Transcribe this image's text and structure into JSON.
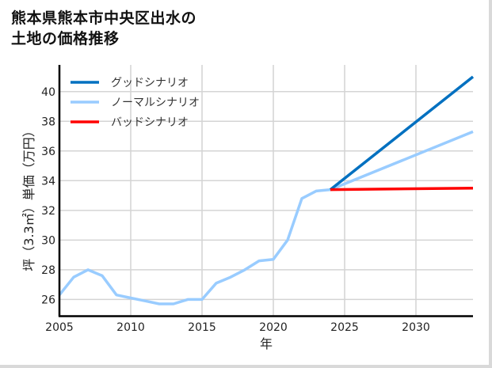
{
  "title": {
    "line1": "熊本県熊本市中央区出水の",
    "line2": "土地の価格推移"
  },
  "chart_data": {
    "type": "line",
    "title": "熊本県熊本市中央区出水の土地の価格推移",
    "xlabel": "年",
    "ylabel": "坪（3.3㎡）単価（万円）",
    "xlim": [
      2005,
      2034
    ],
    "ylim": [
      24.9,
      41.8
    ],
    "xticks": [
      2005,
      2010,
      2015,
      2020,
      2025,
      2030
    ],
    "yticks": [
      26,
      28,
      30,
      32,
      34,
      36,
      38,
      40
    ],
    "grid": true,
    "legend_position": "upper left",
    "series": [
      {
        "name": "グッドシナリオ",
        "color": "#0070c0",
        "x": [
          2024,
          2034
        ],
        "values": [
          33.4,
          41.0
        ]
      },
      {
        "name": "ノーマルシナリオ",
        "color": "#99ccff",
        "x": [
          2005,
          2006,
          2007,
          2008,
          2009,
          2010,
          2011,
          2012,
          2013,
          2014,
          2015,
          2016,
          2017,
          2018,
          2019,
          2020,
          2021,
          2022,
          2023,
          2024,
          2034
        ],
        "values": [
          26.3,
          27.5,
          28.0,
          27.6,
          26.3,
          26.1,
          25.9,
          25.7,
          25.7,
          26.0,
          26.0,
          27.1,
          27.5,
          28.0,
          28.6,
          28.7,
          30.0,
          32.8,
          33.3,
          33.4,
          37.3
        ]
      },
      {
        "name": "バッドシナリオ",
        "color": "#ff0000",
        "x": [
          2024,
          2034
        ],
        "values": [
          33.4,
          33.5
        ]
      }
    ]
  },
  "axes": {
    "x_label": "年",
    "y_label": "坪（3.3㎡）単価（万円）",
    "x_ticks": [
      "2005",
      "2010",
      "2015",
      "2020",
      "2025",
      "2030"
    ],
    "y_ticks": [
      "26",
      "28",
      "30",
      "32",
      "34",
      "36",
      "38",
      "40"
    ]
  },
  "legend": [
    {
      "label": "グッドシナリオ",
      "color": "#0070c0"
    },
    {
      "label": "ノーマルシナリオ",
      "color": "#99ccff"
    },
    {
      "label": "バッドシナリオ",
      "color": "#ff0000"
    }
  ]
}
